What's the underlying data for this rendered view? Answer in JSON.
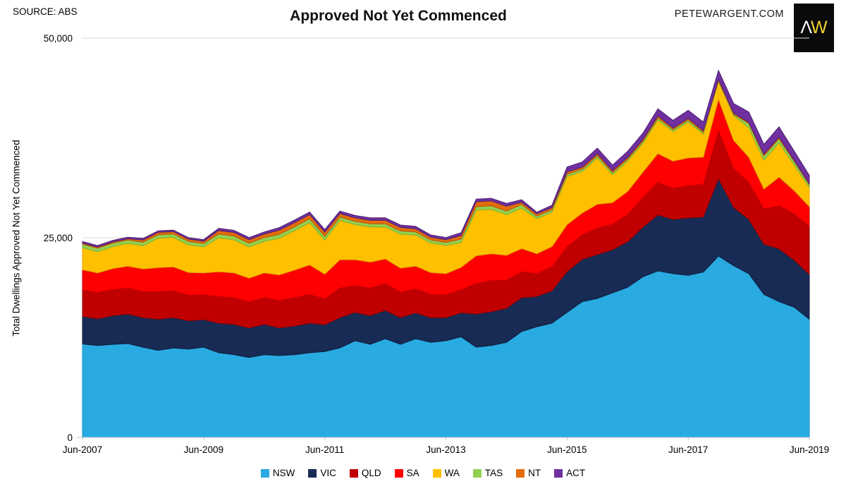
{
  "header": {
    "source": "SOURCE: ABS",
    "title": "Approved Not Yet Commenced",
    "brand": "PETEWARGENT.COM",
    "logo_letter_1": "Λ",
    "logo_letter_2": "W"
  },
  "y_axis": {
    "title": "Total Dwellings Approved Not Yet Commenced",
    "ticks": [
      {
        "value": 0,
        "label": "0"
      },
      {
        "value": 25000,
        "label": "25,000"
      },
      {
        "value": 50000,
        "label": "50,000"
      }
    ],
    "max": 50000
  },
  "x_axis": {
    "tick_labels": [
      "Jun-2007",
      "Jun-2009",
      "Jun-2011",
      "Jun-2013",
      "Jun-2015",
      "Jun-2017",
      "Jun-2019"
    ],
    "tick_quarter_indexes": [
      0,
      8,
      16,
      24,
      32,
      40,
      48
    ]
  },
  "colors": {
    "background": "#FFFFFF",
    "gridline": "#D9D9D9",
    "axis_line": "#BFBFBF",
    "logo_bg": "#0A0A0A",
    "logo_lambda": "#FFFFFF",
    "logo_w": "#EFCF30"
  },
  "chart_data": {
    "type": "area",
    "stacked": true,
    "title": "Approved Not Yet Commenced",
    "xlabel": "",
    "ylabel": "Total Dwellings Approved Not Yet Commenced",
    "ylim": [
      0,
      50000
    ],
    "grid": "horizontal",
    "legend_position": "bottom",
    "x": [
      "Jun-2007",
      "Sep-2007",
      "Dec-2007",
      "Mar-2008",
      "Jun-2008",
      "Sep-2008",
      "Dec-2008",
      "Mar-2009",
      "Jun-2009",
      "Sep-2009",
      "Dec-2009",
      "Mar-2010",
      "Jun-2010",
      "Sep-2010",
      "Dec-2010",
      "Mar-2011",
      "Jun-2011",
      "Sep-2011",
      "Dec-2011",
      "Mar-2012",
      "Jun-2012",
      "Sep-2012",
      "Dec-2012",
      "Mar-2013",
      "Jun-2013",
      "Sep-2013",
      "Dec-2013",
      "Mar-2014",
      "Jun-2014",
      "Sep-2014",
      "Dec-2014",
      "Mar-2015",
      "Jun-2015",
      "Sep-2015",
      "Dec-2015",
      "Mar-2016",
      "Jun-2016",
      "Sep-2016",
      "Dec-2016",
      "Mar-2017",
      "Jun-2017",
      "Sep-2017",
      "Dec-2017",
      "Mar-2018",
      "Jun-2018",
      "Sep-2018",
      "Dec-2018",
      "Mar-2019",
      "Jun-2019"
    ],
    "series": [
      {
        "name": "NSW",
        "color": "#29ABE2",
        "stroke": "#1A8CC4",
        "values": [
          11700,
          11500,
          11650,
          11750,
          11300,
          10900,
          11200,
          11050,
          11300,
          10600,
          10350,
          10000,
          10350,
          10250,
          10350,
          10600,
          10750,
          11200,
          12100,
          11650,
          12350,
          11650,
          12350,
          11900,
          12100,
          12600,
          11300,
          11500,
          11900,
          13250,
          13850,
          14300,
          15650,
          17000,
          17400,
          18100,
          18800,
          20100,
          20850,
          20500,
          20300,
          20700,
          22700,
          21500,
          20500,
          17900,
          17000,
          16300,
          14800
        ]
      },
      {
        "name": "VIC",
        "color": "#182B55",
        "stroke": "#0F1C3A",
        "values": [
          3450,
          3350,
          3600,
          3700,
          3700,
          3900,
          3800,
          3550,
          3450,
          3700,
          3800,
          3700,
          3800,
          3450,
          3600,
          3700,
          3350,
          3800,
          3550,
          3600,
          3550,
          3350,
          3250,
          3100,
          2900,
          3000,
          4150,
          4250,
          4250,
          4250,
          3800,
          4050,
          5100,
          5300,
          5500,
          5400,
          5700,
          6200,
          7000,
          6800,
          7200,
          6900,
          9700,
          7300,
          6800,
          6300,
          6600,
          5900,
          5600
        ]
      },
      {
        "name": "QLD",
        "color": "#C00000",
        "stroke": "#950000",
        "values": [
          3300,
          3300,
          3250,
          3250,
          3250,
          3450,
          3350,
          3200,
          3100,
          3350,
          3350,
          3250,
          3350,
          3450,
          3550,
          3600,
          3250,
          3700,
          3350,
          3450,
          3350,
          3200,
          3000,
          2900,
          2850,
          2900,
          3800,
          3900,
          3550,
          3250,
          2850,
          3000,
          3100,
          3050,
          3300,
          3200,
          3400,
          3700,
          4100,
          3900,
          4000,
          4100,
          6000,
          4900,
          4600,
          4400,
          5400,
          5800,
          6000
        ]
      },
      {
        "name": "SA",
        "color": "#FE0000",
        "stroke": "#CC0000",
        "values": [
          2550,
          2450,
          2650,
          2750,
          2850,
          3000,
          3000,
          2850,
          2750,
          3100,
          3100,
          3000,
          3100,
          3200,
          3450,
          3700,
          3100,
          3550,
          3250,
          3250,
          3100,
          3000,
          2850,
          2750,
          2650,
          2800,
          3500,
          3350,
          3100,
          2900,
          2500,
          2550,
          2800,
          2750,
          3000,
          2700,
          2900,
          3200,
          3600,
          3400,
          3500,
          3400,
          3950,
          3500,
          3200,
          2500,
          3600,
          2900,
          2500
        ]
      },
      {
        "name": "WA",
        "color": "#FFC000",
        "stroke": "#E0A800",
        "values": [
          2750,
          2650,
          2750,
          2850,
          2900,
          3700,
          3700,
          3450,
          3250,
          4250,
          4150,
          3900,
          3950,
          4600,
          4950,
          5300,
          4250,
          4950,
          4400,
          4400,
          4000,
          4250,
          3900,
          3700,
          3550,
          3100,
          5700,
          5550,
          5100,
          5050,
          4400,
          4300,
          6000,
          5200,
          5800,
          3500,
          3800,
          3600,
          4200,
          3700,
          4500,
          2900,
          2200,
          3100,
          3700,
          3600,
          4300,
          3200,
          2400
        ]
      },
      {
        "name": "TAS",
        "color": "#92D050",
        "stroke": "#76B53A",
        "values": [
          430,
          430,
          430,
          430,
          430,
          430,
          430,
          430,
          430,
          470,
          470,
          470,
          470,
          470,
          470,
          470,
          470,
          400,
          400,
          400,
          400,
          400,
          380,
          360,
          350,
          440,
          440,
          440,
          440,
          440,
          300,
          300,
          300,
          280,
          280,
          250,
          250,
          250,
          250,
          250,
          250,
          200,
          150,
          150,
          500,
          550,
          500,
          450,
          350
        ]
      },
      {
        "name": "NT",
        "color": "#E36C0A",
        "stroke": "#B85605",
        "values": [
          150,
          150,
          150,
          150,
          300,
          300,
          300,
          300,
          300,
          440,
          440,
          440,
          440,
          530,
          530,
          530,
          530,
          440,
          440,
          440,
          440,
          440,
          400,
          360,
          350,
          440,
          620,
          620,
          620,
          300,
          300,
          260,
          300,
          260,
          250,
          250,
          220,
          220,
          250,
          200,
          200,
          200,
          150,
          160,
          150,
          200,
          200,
          150,
          120
        ]
      },
      {
        "name": "ACT",
        "color": "#7030A0",
        "stroke": "#4E1F73",
        "values": [
          200,
          190,
          190,
          190,
          190,
          180,
          180,
          180,
          180,
          265,
          265,
          265,
          265,
          320,
          320,
          320,
          320,
          300,
          300,
          300,
          300,
          300,
          290,
          280,
          280,
          350,
          330,
          330,
          330,
          330,
          200,
          300,
          600,
          650,
          700,
          700,
          750,
          800,
          900,
          950,
          1000,
          1100,
          1100,
          1200,
          1300,
          1250,
          1300,
          1150,
          1050
        ]
      }
    ]
  }
}
